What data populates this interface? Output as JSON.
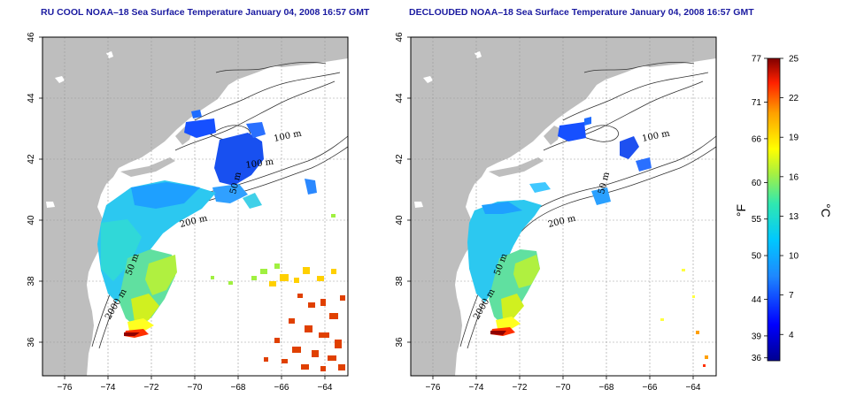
{
  "left_map": {
    "title": "RU COOL NOAA–18 Sea Surface Temperature January 04, 2008 16:57 GMT"
  },
  "right_map": {
    "title": "DECLOUDED NOAA–18 Sea Surface Temperature January 04, 2008 16:57 GMT"
  },
  "axes": {
    "lon_ticks": [
      "−76",
      "−74",
      "−72",
      "−70",
      "−68",
      "−66",
      "−64"
    ],
    "lat_ticks": [
      "36",
      "38",
      "40",
      "42",
      "44",
      "46"
    ]
  },
  "contour_labels": [
    "100 m",
    "100 m",
    "200 m",
    "50 m",
    "2000 m",
    "50 m"
  ],
  "colorbar": {
    "fahrenheit_ticks": [
      "77",
      "71",
      "66",
      "60",
      "55",
      "50",
      "44",
      "39",
      "36"
    ],
    "celsius_ticks": [
      "25",
      "22",
      "19",
      "16",
      "13",
      "10",
      "7",
      "4"
    ],
    "fahrenheit_unit": "°F",
    "celsius_unit": "°C",
    "range_c": [
      2,
      25
    ]
  },
  "colors": {
    "title": "#1a1aa0",
    "land": "#bebebe",
    "grid": "#9a9a9a"
  }
}
